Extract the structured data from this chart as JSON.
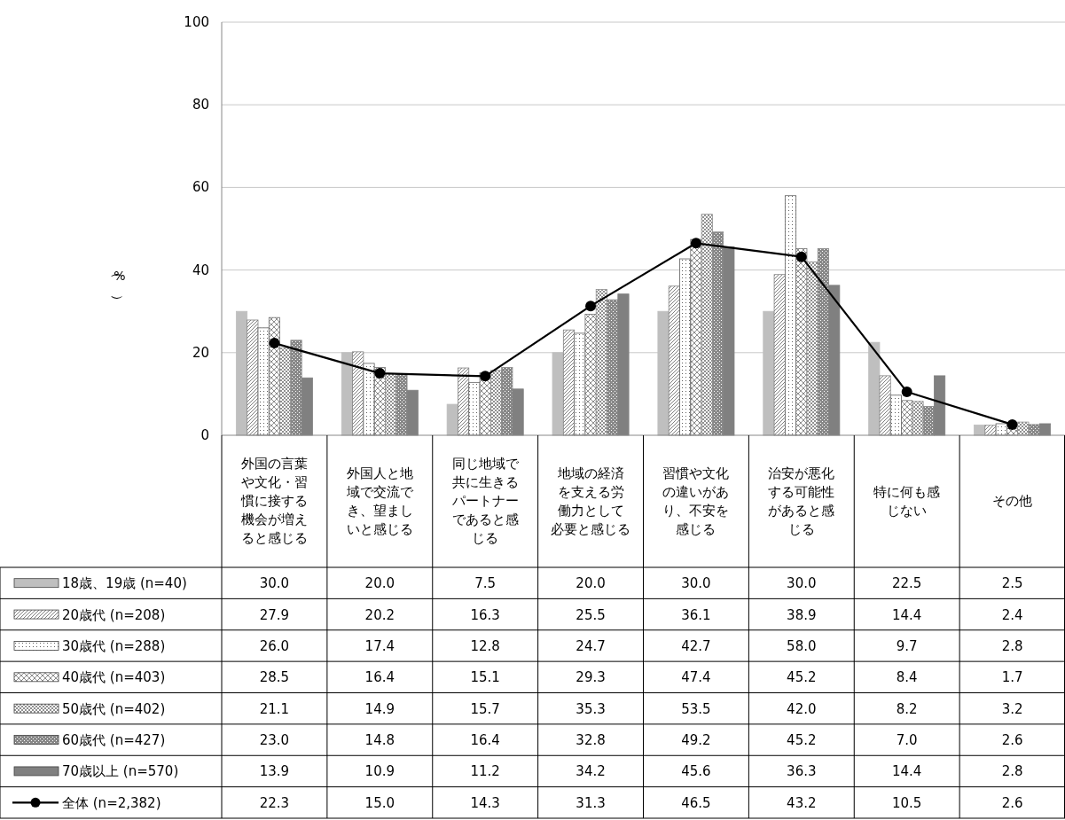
{
  "chart_data": {
    "type": "bar",
    "ylabel": "（%）",
    "categories": [
      "外国の言葉や文化・習慣に接する機会が増えると感じる",
      "外国人と地域で交流でき、望ましいと感じる",
      "同じ地域で共に生きるパートナーであると感じる",
      "地域の経済を支える労働力として必要と感じる",
      "習慣や文化の違いがあり、不安を感じる",
      "治安が悪化する可能性があると感じる",
      "特に何も感じない",
      "その他"
    ],
    "series": [
      {
        "name": "18歳、19歳 (n=40)",
        "color": "#bfbfbf",
        "values": [
          30.0,
          20.0,
          7.5,
          20.0,
          30.0,
          30.0,
          22.5,
          2.5
        ],
        "value_labels": [
          "30.0",
          "20.0",
          "7.5",
          "20.0",
          "30.0",
          "30.0",
          "22.5",
          "2.5"
        ]
      },
      {
        "name": "20歳代 (n=208)",
        "color": "#808080",
        "values": [
          27.9,
          20.2,
          16.3,
          25.5,
          36.1,
          38.9,
          14.4,
          2.4
        ],
        "value_labels": [
          "27.9",
          "20.2",
          "16.3",
          "25.5",
          "36.1",
          "38.9",
          "14.4",
          "2.4"
        ]
      },
      {
        "name": "30歳代 (n=288)",
        "color": "#606060",
        "values": [
          26.0,
          17.4,
          12.8,
          24.7,
          42.7,
          58.0,
          9.7,
          2.8
        ],
        "value_labels": [
          "26.0",
          "17.4",
          "12.8",
          "24.7",
          "42.7",
          "58.0",
          "9.7",
          "2.8"
        ]
      },
      {
        "name": "40歳代 (n=403)",
        "color": "#707070",
        "values": [
          28.5,
          16.4,
          15.1,
          29.3,
          47.4,
          45.2,
          8.4,
          1.7
        ],
        "value_labels": [
          "28.5",
          "16.4",
          "15.1",
          "29.3",
          "47.4",
          "45.2",
          "8.4",
          "1.7"
        ]
      },
      {
        "name": "50歳代 (n=402)",
        "color": "#909090",
        "values": [
          21.1,
          14.9,
          15.7,
          35.3,
          53.5,
          42.0,
          8.2,
          3.2
        ],
        "value_labels": [
          "21.1",
          "14.9",
          "15.7",
          "35.3",
          "53.5",
          "42.0",
          "8.2",
          "3.2"
        ]
      },
      {
        "name": "60歳代 (n=427)",
        "color": "#888888",
        "values": [
          23.0,
          14.8,
          16.4,
          32.8,
          49.2,
          45.2,
          7.0,
          2.6
        ],
        "value_labels": [
          "23.0",
          "14.8",
          "16.4",
          "32.8",
          "49.2",
          "45.2",
          "7.0",
          "2.6"
        ]
      },
      {
        "name": "70歳以上 (n=570)",
        "color": "#808080",
        "values": [
          13.9,
          10.9,
          11.2,
          34.2,
          45.6,
          36.3,
          14.4,
          2.8
        ],
        "value_labels": [
          "13.9",
          "10.9",
          "11.2",
          "34.2",
          "45.6",
          "36.3",
          "14.4",
          "2.8"
        ]
      },
      {
        "name": "全体 (n=2,382)",
        "type": "line",
        "color": "#000000",
        "marker": "circle",
        "values": [
          22.3,
          15.0,
          14.3,
          31.3,
          46.5,
          43.2,
          10.5,
          2.6
        ],
        "value_labels": [
          "22.3",
          "15.0",
          "14.3",
          "31.3",
          "46.5",
          "43.2",
          "10.5",
          "2.6"
        ]
      }
    ],
    "ylim": [
      0,
      100
    ],
    "yticks": [
      0,
      20,
      40,
      60,
      80,
      100
    ],
    "grid": "y",
    "legend": "bottom"
  }
}
